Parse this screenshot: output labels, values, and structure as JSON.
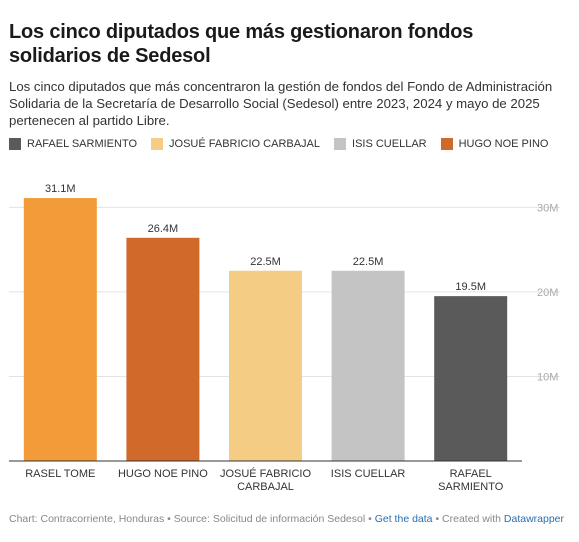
{
  "title": "Los cinco diputados que más gestionaron fondos solidarios de Sedesol",
  "subtitle": "Los cinco diputados que más concentraron la gestión de fondos del Fondo de Administración Solidaria de la Secretaría de Desarrollo Social (Sedesol) entre 2023, 2024 y mayo de 2025 pertenecen al partido Libre.",
  "legend": [
    {
      "label": "RAFAEL SARMIENTO",
      "color": "#5a5a5a"
    },
    {
      "label": "JOSUÉ FABRICIO CARBAJAL",
      "color": "#f5cc84"
    },
    {
      "label": "ISIS CUELLAR",
      "color": "#c4c4c4"
    },
    {
      "label": "HUGO NOE PINO",
      "color": "#d0692a"
    }
  ],
  "chart_data": {
    "type": "bar",
    "title": "",
    "xlabel": "",
    "ylabel": "",
    "ylim": [
      0,
      33
    ],
    "yticks": [
      10,
      20,
      30
    ],
    "ytick_labels": [
      "10M",
      "20M",
      "30M"
    ],
    "grid": true,
    "legend_position": "top",
    "categories": [
      [
        "RASEL TOME"
      ],
      [
        "HUGO NOE PINO"
      ],
      [
        "JOSUÉ FABRICIO",
        "CARBAJAL"
      ],
      [
        "ISIS CUELLAR"
      ],
      [
        "RAFAEL",
        "SARMIENTO"
      ]
    ],
    "values": [
      31.1,
      26.4,
      22.5,
      22.5,
      19.5
    ],
    "value_labels": [
      "31.1M",
      "26.4M",
      "22.5M",
      "22.5M",
      "19.5M"
    ],
    "colors": [
      "#f29b38",
      "#d0692a",
      "#f5cc84",
      "#c4c4c4",
      "#5a5a5a"
    ]
  },
  "footer": {
    "prefix": "Chart: Contracorriente, Honduras • Source: Solicitud de información Sedesol •",
    "get_data": "Get the data",
    "mid": "• Created with",
    "datawrapper": "Datawrapper"
  }
}
